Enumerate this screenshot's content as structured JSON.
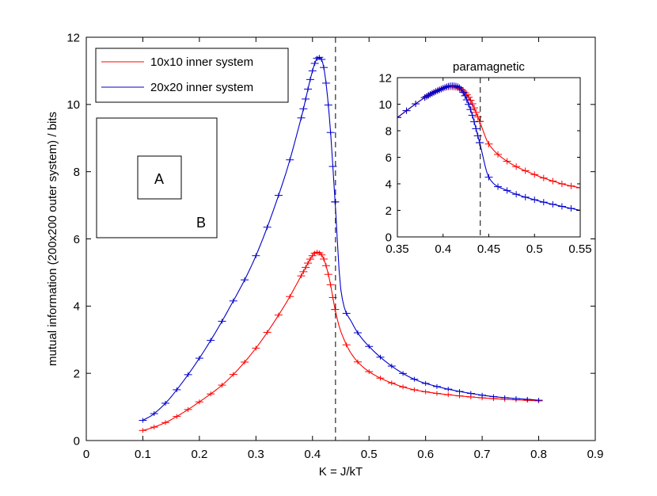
{
  "chart_data": [
    {
      "type": "line",
      "title": "",
      "xlabel": "K = J/kT",
      "ylabel": "mutual information (200x200 outer system) / bits",
      "xlim": [
        0,
        0.9
      ],
      "ylim": [
        0,
        12
      ],
      "xticks": [
        "0",
        "0.1",
        "0.2",
        "0.3",
        "0.4",
        "0.5",
        "0.6",
        "0.7",
        "0.8",
        "0.9"
      ],
      "yticks": [
        "0",
        "2",
        "4",
        "6",
        "8",
        "10",
        "12"
      ],
      "critical_line_x": 0.4407,
      "legend": {
        "placement": "top-left",
        "entries": [
          "10x10 inner system",
          "20x20 inner system"
        ]
      },
      "diagram": {
        "inner_label": "A",
        "outer_label": "B"
      },
      "series": [
        {
          "name": "10x10 inner system",
          "color": "#ff0000",
          "x": [
            0.1,
            0.12,
            0.15,
            0.2,
            0.25,
            0.3,
            0.35,
            0.38,
            0.4,
            0.41,
            0.42,
            0.43,
            0.44,
            0.45,
            0.47,
            0.5,
            0.55,
            0.6,
            0.7,
            0.8
          ],
          "y": [
            0.3,
            0.4,
            0.62,
            1.15,
            1.8,
            2.75,
            4.0,
            4.9,
            5.5,
            5.6,
            5.4,
            4.8,
            3.9,
            3.25,
            2.55,
            2.05,
            1.65,
            1.45,
            1.27,
            1.18
          ]
        },
        {
          "name": "20x20 inner system",
          "color": "#0000cc",
          "x": [
            0.1,
            0.12,
            0.15,
            0.2,
            0.25,
            0.3,
            0.35,
            0.38,
            0.4,
            0.41,
            0.42,
            0.43,
            0.44,
            0.45,
            0.47,
            0.5,
            0.55,
            0.6,
            0.7,
            0.8
          ],
          "y": [
            0.6,
            0.8,
            1.3,
            2.45,
            3.85,
            5.5,
            7.8,
            9.6,
            11.0,
            11.4,
            11.1,
            9.6,
            7.1,
            4.5,
            3.5,
            2.8,
            2.1,
            1.7,
            1.35,
            1.2
          ]
        }
      ]
    },
    {
      "type": "line",
      "title": "paramagnetic",
      "xlim": [
        0.35,
        0.55
      ],
      "ylim": [
        0,
        12
      ],
      "xticks": [
        "0.35",
        "0.4",
        "0.45",
        "0.5",
        "0.55"
      ],
      "yticks": [
        "0",
        "2",
        "4",
        "6",
        "8",
        "10",
        "12"
      ],
      "critical_line_x": 0.4407,
      "series": [
        {
          "name": "10x10 inner system",
          "color": "#ff0000",
          "x": [
            0.35,
            0.38,
            0.4,
            0.41,
            0.42,
            0.43,
            0.44,
            0.45,
            0.47,
            0.5,
            0.53,
            0.55
          ],
          "y": [
            9.0,
            10.5,
            11.2,
            11.3,
            11.1,
            10.3,
            8.7,
            7.0,
            5.7,
            4.7,
            4.0,
            3.7
          ]
        },
        {
          "name": "20x20 inner system",
          "color": "#0000cc",
          "x": [
            0.35,
            0.38,
            0.4,
            0.41,
            0.42,
            0.43,
            0.44,
            0.45,
            0.47,
            0.5,
            0.53,
            0.55
          ],
          "y": [
            9.0,
            10.5,
            11.2,
            11.4,
            11.1,
            9.6,
            7.1,
            4.5,
            3.5,
            2.8,
            2.3,
            2.0
          ]
        }
      ]
    }
  ]
}
